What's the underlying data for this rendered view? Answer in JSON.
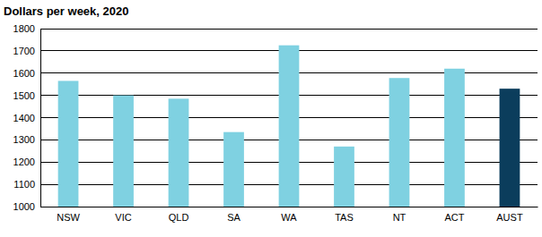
{
  "chart_data": {
    "type": "bar",
    "title": "Dollars per week, 2020",
    "categories": [
      "NSW",
      "VIC",
      "QLD",
      "SA",
      "WA",
      "TAS",
      "NT",
      "ACT",
      "AUST"
    ],
    "values": [
      1565,
      1500,
      1485,
      1335,
      1725,
      1270,
      1578,
      1620,
      1530
    ],
    "colors": [
      "#7fd1e1",
      "#7fd1e1",
      "#7fd1e1",
      "#7fd1e1",
      "#7fd1e1",
      "#7fd1e1",
      "#7fd1e1",
      "#7fd1e1",
      "#0b3d5c"
    ],
    "ylim": [
      1000,
      1800
    ],
    "yticks": [
      1000,
      1100,
      1200,
      1300,
      1400,
      1500,
      1600,
      1700,
      1800
    ],
    "grid": true
  }
}
